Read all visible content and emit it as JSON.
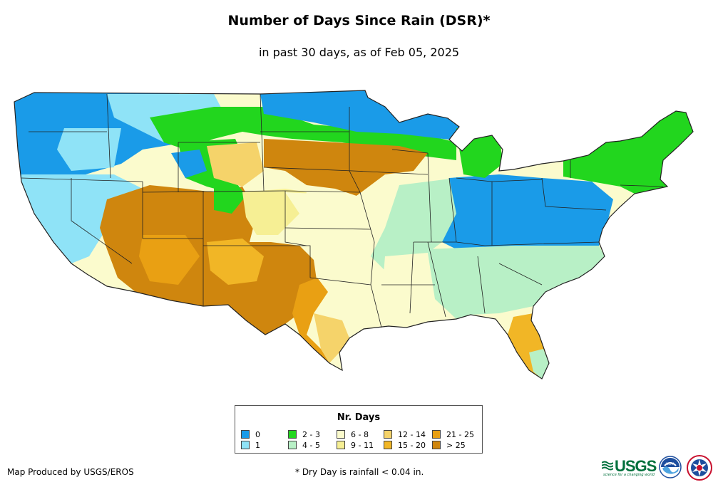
{
  "title": "Number of Days Since Rain (DSR)*",
  "subtitle": "in past 30 days, as of Feb 05, 2025",
  "legend": {
    "title": "Nr. Days",
    "items": [
      {
        "label": "0",
        "color": "#1a9be8"
      },
      {
        "label": "1",
        "color": "#8fe3f7"
      },
      {
        "label": "2 - 3",
        "color": "#22d61e"
      },
      {
        "label": "4 - 5",
        "color": "#b8f0c6"
      },
      {
        "label": "6 - 8",
        "color": "#fbfbcd"
      },
      {
        "label": "9 - 11",
        "color": "#f6ef94"
      },
      {
        "label": "12 - 14",
        "color": "#f5d36a"
      },
      {
        "label": "15 - 20",
        "color": "#f1b626"
      },
      {
        "label": "21 - 25",
        "color": "#e9a013"
      },
      {
        "label": "> 25",
        "color": "#cf860e"
      }
    ]
  },
  "credit": "Map Produced by USGS/EROS",
  "footnote": "* Dry Day is rainfall < 0.04 in.",
  "logos": {
    "usgs": "USGS",
    "usgs_tagline": "science for a changing world",
    "noaa": "NOAA"
  }
}
